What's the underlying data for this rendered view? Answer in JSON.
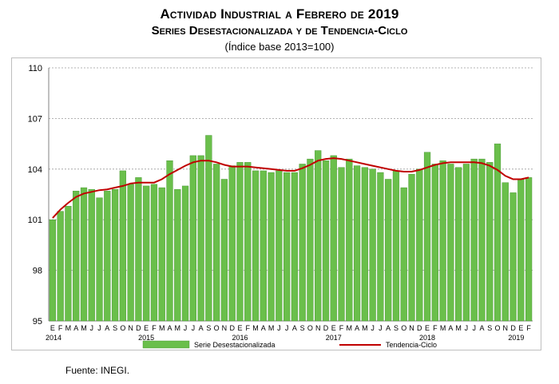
{
  "header": {
    "title": "Actividad Industrial a Febrero de 2019",
    "subtitle": "Series Desestacionalizada y de Tendencia-Ciclo",
    "note": "(Índice base 2013=100)"
  },
  "footer": {
    "source": "Fuente: INEGI."
  },
  "colors": {
    "bar": "#6abf4b",
    "bar_edge": "#3f8f2a",
    "line": "#c00000",
    "grid": "#9a9a9a"
  },
  "chart_data": {
    "type": "bar",
    "ylim": [
      95,
      110
    ],
    "yticks": [
      95,
      98,
      101,
      104,
      107,
      110
    ],
    "month_labels": [
      "E",
      "F",
      "M",
      "A",
      "M",
      "J",
      "J",
      "A",
      "S",
      "O",
      "N",
      "D",
      "E",
      "F",
      "M",
      "A",
      "M",
      "J",
      "J",
      "A",
      "S",
      "O",
      "N",
      "D",
      "E",
      "F",
      "M",
      "A",
      "M",
      "J",
      "J",
      "A",
      "S",
      "O",
      "N",
      "D",
      "E",
      "F",
      "M",
      "A",
      "M",
      "J",
      "J",
      "A",
      "S",
      "O",
      "N",
      "D",
      "E",
      "F",
      "M",
      "A",
      "M",
      "J",
      "J",
      "A",
      "S",
      "O",
      "N",
      "D",
      "E",
      "F"
    ],
    "year_labels": [
      {
        "label": "2014",
        "index": 0
      },
      {
        "label": "2015",
        "index": 12
      },
      {
        "label": "2016",
        "index": 24
      },
      {
        "label": "2017",
        "index": 36
      },
      {
        "label": "2018",
        "index": 48
      },
      {
        "label": "2019",
        "index": 60
      }
    ],
    "series": [
      {
        "name": "Serie Desestacionalizada",
        "kind": "bar",
        "values": [
          101.0,
          101.5,
          101.8,
          102.7,
          102.9,
          102.8,
          102.3,
          102.7,
          102.8,
          103.9,
          103.1,
          103.5,
          103.0,
          103.1,
          102.9,
          104.5,
          102.8,
          103.0,
          104.8,
          104.8,
          106.0,
          104.3,
          103.4,
          104.2,
          104.4,
          104.4,
          103.9,
          103.9,
          103.8,
          103.9,
          103.8,
          103.8,
          104.3,
          104.6,
          105.1,
          104.5,
          104.8,
          104.1,
          104.6,
          104.2,
          104.1,
          104.0,
          103.8,
          103.4,
          103.9,
          102.9,
          103.7,
          104.0,
          105.0,
          104.3,
          104.5,
          104.3,
          104.1,
          104.3,
          104.6,
          104.6,
          104.4,
          105.5,
          103.2,
          102.6,
          103.4,
          103.5
        ]
      },
      {
        "name": "Tendencia-Ciclo",
        "kind": "line",
        "values": [
          101.1,
          101.6,
          102.0,
          102.35,
          102.55,
          102.65,
          102.75,
          102.8,
          102.9,
          103.0,
          103.15,
          103.2,
          103.2,
          103.2,
          103.4,
          103.7,
          103.95,
          104.2,
          104.4,
          104.5,
          104.5,
          104.4,
          104.25,
          104.15,
          104.15,
          104.15,
          104.1,
          104.05,
          104.0,
          103.95,
          103.9,
          103.9,
          104.05,
          104.25,
          104.5,
          104.6,
          104.65,
          104.6,
          104.5,
          104.4,
          104.3,
          104.2,
          104.1,
          104.0,
          103.9,
          103.85,
          103.85,
          103.95,
          104.1,
          104.25,
          104.35,
          104.4,
          104.4,
          104.4,
          104.4,
          104.35,
          104.2,
          103.95,
          103.6,
          103.4,
          103.4,
          103.5
        ]
      }
    ],
    "legend_position": "bottom",
    "grid": true
  }
}
